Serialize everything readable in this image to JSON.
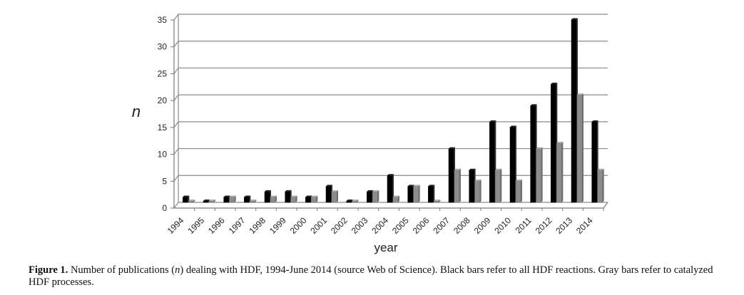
{
  "chart_data": {
    "type": "bar",
    "categories": [
      "1994",
      "1995",
      "1996",
      "1997",
      "1998",
      "1999",
      "2000",
      "2001",
      "2002",
      "2003",
      "2004",
      "2005",
      "2006",
      "2007",
      "2008",
      "2009",
      "2010",
      "2011",
      "2012",
      "2013",
      "2014"
    ],
    "series": [
      {
        "values": [
          1,
          0,
          1,
          1,
          2,
          2,
          1,
          3,
          0,
          2,
          5,
          3,
          3,
          10,
          6,
          15,
          14,
          18,
          22,
          34,
          15
        ],
        "color": "#000000"
      },
      {
        "values": [
          0,
          0,
          1,
          0,
          1,
          1,
          1,
          2,
          0,
          2,
          1,
          3,
          0,
          6,
          4,
          6,
          4,
          10,
          11,
          20,
          6
        ],
        "color": "#8c8c8c"
      }
    ],
    "xlabel": "year",
    "ylabel": "n",
    "ylim": [
      0,
      35
    ],
    "yticks": [
      0,
      5,
      10,
      15,
      20,
      25,
      30,
      35
    ],
    "grid": true
  },
  "caption": {
    "label": "Figure 1.",
    "text_before": " Number of publications (",
    "italic": "n",
    "text_after": ") dealing with HDF, 1994-June 2014 (source Web of Science). Black bars refer to all HDF reactions. Gray bars refer to catalyzed HDF processes."
  }
}
